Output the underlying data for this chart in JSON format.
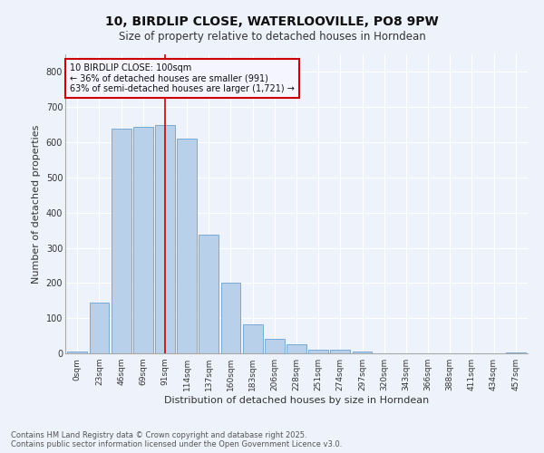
{
  "title": "10, BIRDLIP CLOSE, WATERLOOVILLE, PO8 9PW",
  "subtitle": "Size of property relative to detached houses in Horndean",
  "xlabel": "Distribution of detached houses by size in Horndean",
  "ylabel": "Number of detached properties",
  "bar_labels": [
    "0sqm",
    "23sqm",
    "46sqm",
    "69sqm",
    "91sqm",
    "114sqm",
    "137sqm",
    "160sqm",
    "183sqm",
    "206sqm",
    "228sqm",
    "251sqm",
    "274sqm",
    "297sqm",
    "320sqm",
    "343sqm",
    "366sqm",
    "388sqm",
    "411sqm",
    "434sqm",
    "457sqm"
  ],
  "bar_values": [
    5,
    145,
    640,
    645,
    648,
    610,
    338,
    200,
    83,
    42,
    27,
    10,
    10,
    5,
    0,
    0,
    0,
    0,
    0,
    0,
    3
  ],
  "bar_color": "#b8d0ea",
  "bar_edge_color": "#6aa0cc",
  "vline_x": 4,
  "vline_color": "#cc0000",
  "ylim": [
    0,
    850
  ],
  "annotation_text": "10 BIRDLIP CLOSE: 100sqm\n← 36% of detached houses are smaller (991)\n63% of semi-detached houses are larger (1,721) →",
  "annotation_box_color": "#cc0000",
  "footnote": "Contains HM Land Registry data © Crown copyright and database right 2025.\nContains public sector information licensed under the Open Government Licence v3.0.",
  "background_color": "#eef2fa",
  "grid_color": "#ffffff",
  "title_fontsize": 10,
  "subtitle_fontsize": 8.5,
  "tick_fontsize": 6.5,
  "ylabel_fontsize": 8,
  "xlabel_fontsize": 8,
  "annot_fontsize": 7
}
